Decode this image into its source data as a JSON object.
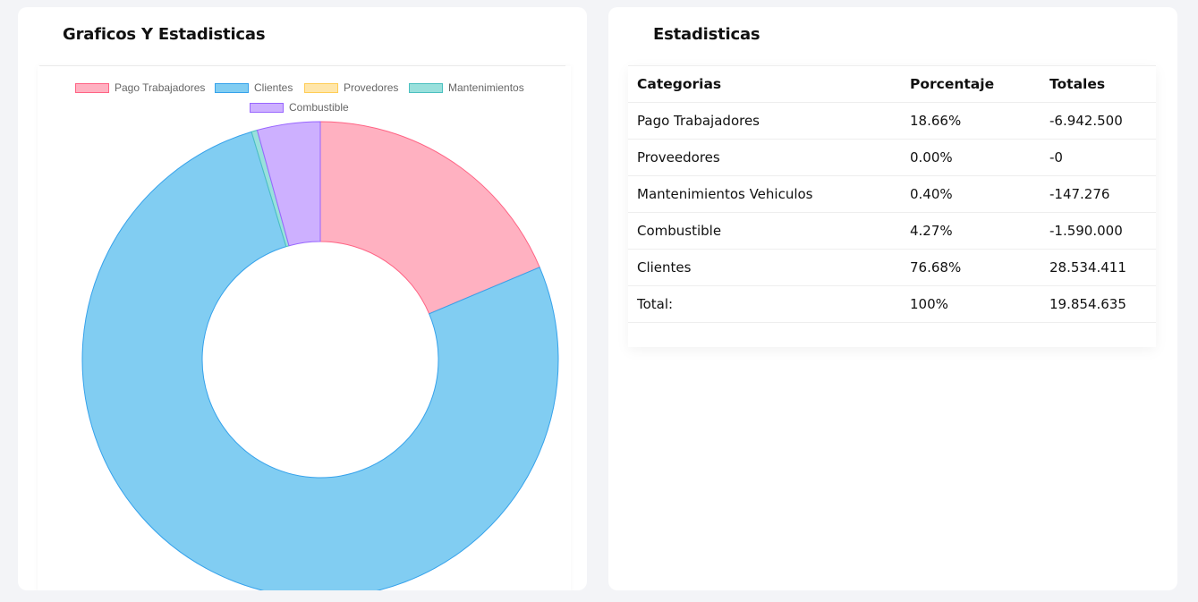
{
  "chart_card": {
    "title": "Graficos Y Estadisticas"
  },
  "stats_card": {
    "title": "Estadisticas",
    "table": {
      "headers": [
        "Categorias",
        "Porcentaje",
        "Totales"
      ],
      "rows": [
        [
          "Pago Trabajadores",
          "18.66%",
          "-6.942.500"
        ],
        [
          "Proveedores",
          "0.00%",
          "-0"
        ],
        [
          "Mantenimientos Vehiculos",
          "0.40%",
          "-147.276"
        ],
        [
          "Combustible",
          "4.27%",
          "-1.590.000"
        ],
        [
          "Clientes",
          "76.68%",
          "28.534.411"
        ],
        [
          "Total:",
          "100%",
          "19.854.635"
        ]
      ]
    }
  },
  "chart_data": {
    "type": "pie",
    "variant": "doughnut",
    "title": "",
    "legend_position": "top",
    "categories": [
      "Pago Trabajadores",
      "Clientes",
      "Provedores",
      "Mantenimientos",
      "Combustible"
    ],
    "values": [
      18.66,
      76.68,
      0.0,
      0.4,
      4.27
    ],
    "colors": {
      "fill": [
        "#ffb1c1",
        "#81cdf2",
        "#ffe6aa",
        "#99e0dc",
        "#cdb0ff"
      ],
      "border": [
        "#ff6384",
        "#36a2eb",
        "#ffcd56",
        "#4bc0c0",
        "#9966ff"
      ]
    }
  }
}
